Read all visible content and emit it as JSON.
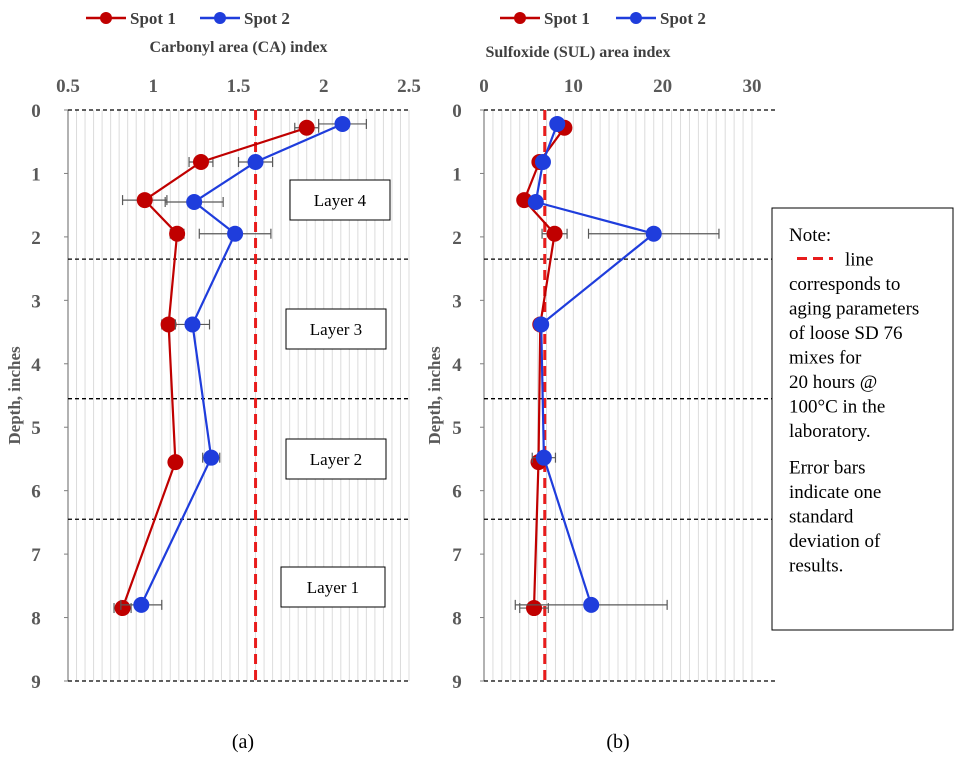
{
  "chart_data": [
    {
      "type": "line",
      "panel_label": "(a)",
      "title": "Carbonyl area (CA) index",
      "ylabel": "Depth, inches",
      "xlim": [
        0.5,
        2.5
      ],
      "xticks": [
        0.5,
        1.0,
        1.5,
        2.0,
        2.5
      ],
      "xtick_labels": [
        "0.5",
        "1",
        "1.5",
        "2",
        "2.5"
      ],
      "ylim": [
        0,
        9
      ],
      "yticks": [
        0,
        1,
        2,
        3,
        4,
        5,
        6,
        7,
        8,
        9
      ],
      "y_reversed": true,
      "x_axis_position": "top",
      "grid": "vertical minor",
      "reference_line": {
        "value": 1.6,
        "color": "#e81c1c",
        "style": "dashed"
      },
      "layer_boundaries": [
        0,
        2.35,
        4.55,
        6.45,
        9
      ],
      "layers": [
        {
          "label": "Layer 4",
          "y": 1.45
        },
        {
          "label": "Layer 3",
          "y": 3.5
        },
        {
          "label": "Layer 2",
          "y": 5.55
        },
        {
          "label": "Layer 1",
          "y": 7.65
        }
      ],
      "series": [
        {
          "name": "Spot 1",
          "color": "#c00000",
          "points": [
            {
              "x": 1.9,
              "y": 0.28,
              "err": 0.07
            },
            {
              "x": 1.28,
              "y": 0.82,
              "err": 0.07
            },
            {
              "x": 0.95,
              "y": 1.42,
              "err": 0.13
            },
            {
              "x": 1.14,
              "y": 1.95,
              "err": 0.04
            },
            {
              "x": 1.09,
              "y": 3.38,
              "err": 0.04
            },
            {
              "x": 1.13,
              "y": 5.55,
              "err": 0.03
            },
            {
              "x": 0.82,
              "y": 7.85,
              "err": 0.05
            }
          ]
        },
        {
          "name": "Spot 2",
          "color": "#1f3ddc",
          "points": [
            {
              "x": 2.11,
              "y": 0.22,
              "err": 0.14
            },
            {
              "x": 1.6,
              "y": 0.82,
              "err": 0.1
            },
            {
              "x": 1.24,
              "y": 1.45,
              "err": 0.17
            },
            {
              "x": 1.48,
              "y": 1.95,
              "err": 0.21
            },
            {
              "x": 1.23,
              "y": 3.38,
              "err": 0.1
            },
            {
              "x": 1.34,
              "y": 5.48,
              "err": 0.05
            },
            {
              "x": 0.93,
              "y": 7.8,
              "err": 0.12
            }
          ]
        }
      ]
    },
    {
      "type": "line",
      "panel_label": "(b)",
      "title": "Sulfoxide (SUL) area index",
      "ylabel": "Depth, inches",
      "xlim": [
        0,
        30
      ],
      "xticks": [
        0,
        10,
        20,
        30
      ],
      "xtick_labels": [
        "0",
        "10",
        "20",
        "30"
      ],
      "ylim": [
        0,
        9
      ],
      "yticks": [
        0,
        1,
        2,
        3,
        4,
        5,
        6,
        7,
        8,
        9
      ],
      "y_reversed": true,
      "x_axis_position": "top",
      "grid": "vertical minor",
      "reference_line": {
        "value": 6.8,
        "color": "#e81c1c",
        "style": "dashed"
      },
      "layer_boundaries": [
        0,
        2.35,
        4.55,
        6.45,
        9
      ],
      "series": [
        {
          "name": "Spot 1",
          "color": "#c00000",
          "points": [
            {
              "x": 9.0,
              "y": 0.28,
              "err": 0.5
            },
            {
              "x": 6.2,
              "y": 0.82,
              "err": 0.5
            },
            {
              "x": 4.5,
              "y": 1.42,
              "err": 0.5
            },
            {
              "x": 7.9,
              "y": 1.95,
              "err": 1.4
            },
            {
              "x": 6.3,
              "y": 3.38,
              "err": 0.4
            },
            {
              "x": 6.1,
              "y": 5.55,
              "err": 0.4
            },
            {
              "x": 5.6,
              "y": 7.85,
              "err": 1.6
            }
          ]
        },
        {
          "name": "Spot 2",
          "color": "#1f3ddc",
          "points": [
            {
              "x": 8.2,
              "y": 0.22,
              "err": 0.5
            },
            {
              "x": 6.6,
              "y": 0.82,
              "err": 0.5
            },
            {
              "x": 5.8,
              "y": 1.45,
              "err": 0.5
            },
            {
              "x": 19.0,
              "y": 1.95,
              "err": 7.3
            },
            {
              "x": 6.4,
              "y": 3.38,
              "err": 0.5
            },
            {
              "x": 6.7,
              "y": 5.48,
              "err": 1.3
            },
            {
              "x": 12.0,
              "y": 7.8,
              "err": 8.5
            }
          ]
        }
      ]
    }
  ],
  "note": {
    "lines": [
      "Note:",
      "line",
      "corresponds to",
      "aging parameters",
      "of loose SD 76",
      "mixes for",
      "20 hours @",
      "100°C in the",
      "laboratory.",
      "",
      "Error bars",
      "indicate one",
      "standard",
      "deviation of",
      "results."
    ]
  }
}
